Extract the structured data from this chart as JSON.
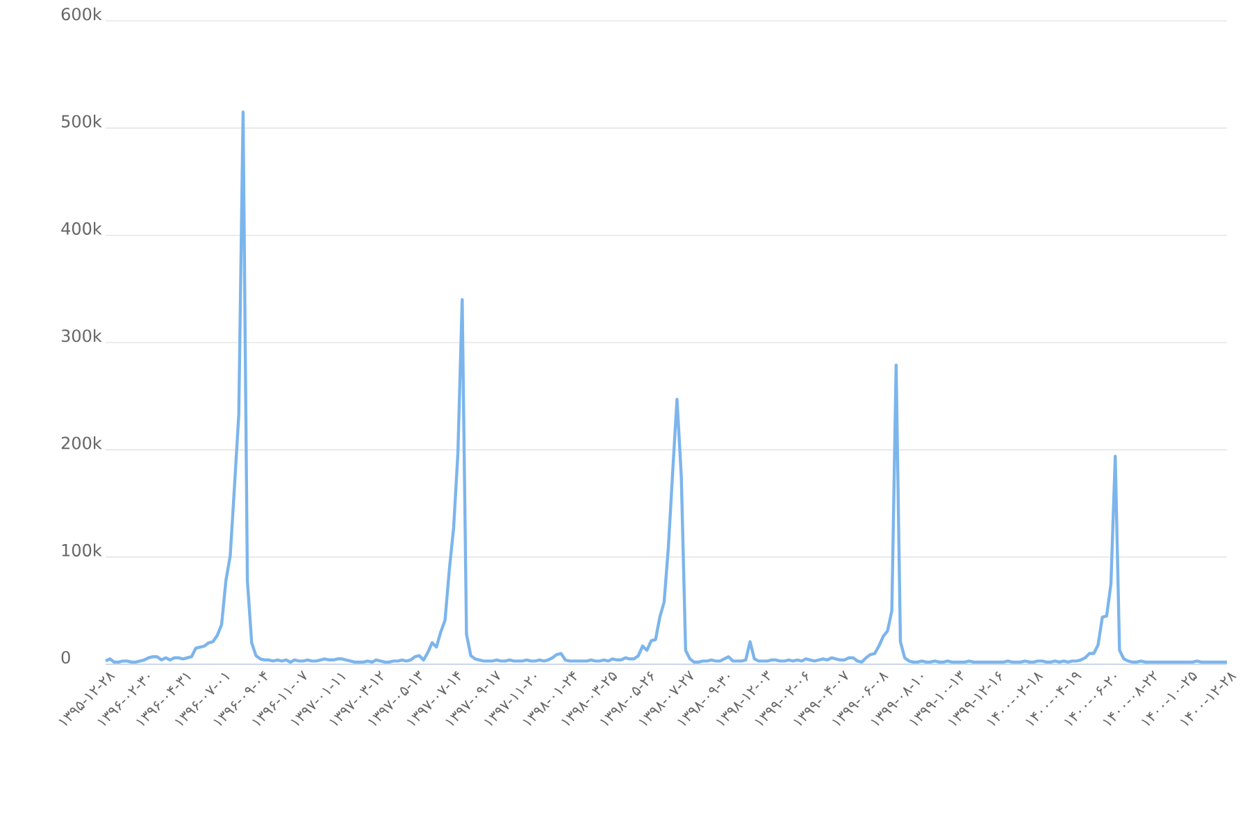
{
  "chart_data": {
    "type": "line",
    "color": "#7cb5ec",
    "grid": "y",
    "ylim": [
      0,
      600000
    ],
    "yticks": [
      {
        "value": 0,
        "label": "0"
      },
      {
        "value": 100000,
        "label": "100k"
      },
      {
        "value": 200000,
        "label": "200k"
      },
      {
        "value": 300000,
        "label": "300k"
      },
      {
        "value": 400000,
        "label": "400k"
      },
      {
        "value": 500000,
        "label": "500k"
      },
      {
        "value": 600000,
        "label": "600k"
      }
    ],
    "categories": [
      "۱۳۹۵-۱۲-۲۸",
      null,
      null,
      null,
      null,
      null,
      null,
      null,
      null,
      "۱۳۹۶-۰۲-۳۰",
      null,
      null,
      null,
      null,
      null,
      null,
      null,
      null,
      "۱۳۹۶-۰۴-۳۱",
      null,
      null,
      null,
      null,
      null,
      null,
      null,
      null,
      "۱۳۹۶-۰۷-۰۱",
      null,
      null,
      null,
      null,
      null,
      null,
      null,
      null,
      "۱۳۹۶-۰۹-۰۴",
      null,
      null,
      null,
      null,
      null,
      null,
      null,
      null,
      "۱۳۹۶-۱۱-۰۷",
      null,
      null,
      null,
      null,
      null,
      null,
      null,
      null,
      "۱۳۹۷-۰۱-۱۱",
      null,
      null,
      null,
      null,
      null,
      null,
      null,
      null,
      "۱۳۹۷-۰۳-۱۲",
      null,
      null,
      null,
      null,
      null,
      null,
      null,
      null,
      "۱۳۹۷-۰۵-۱۳",
      null,
      null,
      null,
      null,
      null,
      null,
      null,
      null,
      "۱۳۹۷-۰۷-۱۴",
      null,
      null,
      null,
      null,
      null,
      null,
      null,
      null,
      "۱۳۹۷-۰۹-۱۷",
      null,
      null,
      null,
      null,
      null,
      null,
      null,
      null,
      "۱۳۹۷-۱۱-۲۰",
      null,
      null,
      null,
      null,
      null,
      null,
      null,
      null,
      "۱۳۹۸-۰۱-۲۴",
      null,
      null,
      null,
      null,
      null,
      null,
      null,
      null,
      "۱۳۹۸-۰۳-۲۵",
      null,
      null,
      null,
      null,
      null,
      null,
      null,
      null,
      "۱۳۹۸-۰۵-۲۶",
      null,
      null,
      null,
      null,
      null,
      null,
      null,
      null,
      "۱۳۹۸-۰۷-۲۷",
      null,
      null,
      null,
      null,
      null,
      null,
      null,
      null,
      "۱۳۹۸-۰۹-۳۰",
      null,
      null,
      null,
      null,
      null,
      null,
      null,
      null,
      "۱۳۹۸-۱۲-۰۳",
      null,
      null,
      null,
      null,
      null,
      null,
      null,
      null,
      "۱۳۹۹-۰۲-۰۶",
      null,
      null,
      null,
      null,
      null,
      null,
      null,
      null,
      "۱۳۹۹-۰۴-۰۷",
      null,
      null,
      null,
      null,
      null,
      null,
      null,
      null,
      "۱۳۹۹-۰۶-۰۸",
      null,
      null,
      null,
      null,
      null,
      null,
      null,
      null,
      "۱۳۹۹-۰۸-۱۰",
      null,
      null,
      null,
      null,
      null,
      null,
      null,
      null,
      "۱۳۹۹-۱۰-۱۳",
      null,
      null,
      null,
      null,
      null,
      null,
      null,
      null,
      "۱۳۹۹-۱۲-۱۶",
      null,
      null,
      null,
      null,
      null,
      null,
      null,
      null,
      "۱۴۰۰-۰۲-۱۸",
      null,
      null,
      null,
      null,
      null,
      null,
      null,
      null,
      "۱۴۰۰-۰۴-۱۹",
      null,
      null,
      null,
      null,
      null,
      null,
      null,
      null,
      "۱۴۰۰-۰۶-۲۰",
      null,
      null,
      null,
      null,
      null,
      null,
      null,
      null,
      "۱۴۰۰-۰۸-۲۲",
      null,
      null,
      null,
      null,
      null,
      null,
      null,
      null,
      "۱۴۰۰-۱۰-۲۵",
      null,
      null,
      null,
      null,
      null,
      null,
      null,
      null,
      "۱۴۰۰-۱۲-۲۸"
    ],
    "values": [
      3000,
      5000,
      2000,
      2000,
      3000,
      3000,
      2000,
      2000,
      3000,
      4000,
      6000,
      7000,
      7000,
      4000,
      6000,
      4000,
      6000,
      6000,
      5000,
      6000,
      7000,
      15000,
      16000,
      17000,
      20000,
      21000,
      27000,
      37000,
      78000,
      101000,
      166000,
      233000,
      515000,
      78000,
      20000,
      8000,
      5000,
      4000,
      4000,
      3000,
      4000,
      3000,
      4000,
      2000,
      4000,
      3000,
      3000,
      4000,
      3000,
      3000,
      4000,
      5000,
      4000,
      4000,
      5000,
      5000,
      4000,
      3000,
      2000,
      2000,
      2000,
      3000,
      2000,
      4000,
      3000,
      2000,
      2000,
      3000,
      3000,
      4000,
      3000,
      4000,
      7000,
      8000,
      4000,
      11000,
      20000,
      16000,
      30000,
      41000,
      88000,
      127000,
      197000,
      340000,
      28000,
      8000,
      5000,
      4000,
      3000,
      3000,
      3000,
      4000,
      3000,
      3000,
      4000,
      3000,
      3000,
      3000,
      4000,
      3000,
      3000,
      4000,
      3000,
      4000,
      6000,
      9000,
      10000,
      4000,
      3000,
      3000,
      3000,
      3000,
      3000,
      4000,
      3000,
      3000,
      4000,
      3000,
      5000,
      4000,
      4000,
      6000,
      5000,
      5000,
      8000,
      17000,
      13000,
      22000,
      23000,
      44000,
      58000,
      110000,
      180000,
      247000,
      175000,
      13000,
      5000,
      2000,
      2000,
      3000,
      3000,
      4000,
      3000,
      3000,
      5000,
      7000,
      3000,
      3000,
      3000,
      4000,
      21000,
      5000,
      3000,
      3000,
      3000,
      4000,
      4000,
      3000,
      3000,
      4000,
      3000,
      4000,
      3000,
      5000,
      4000,
      3000,
      4000,
      5000,
      4000,
      6000,
      5000,
      4000,
      4000,
      6000,
      6000,
      3000,
      2000,
      6000,
      9000,
      10000,
      17000,
      26000,
      31000,
      50000,
      279000,
      21000,
      6000,
      3000,
      2000,
      2000,
      3000,
      2000,
      2000,
      3000,
      2000,
      2000,
      3000,
      2000,
      2000,
      2000,
      2000,
      3000,
      2000,
      2000,
      2000,
      2000,
      2000,
      2000,
      2000,
      2000,
      3000,
      2000,
      2000,
      2000,
      3000,
      2000,
      2000,
      3000,
      3000,
      2000,
      2000,
      3000,
      2000,
      3000,
      2000,
      3000,
      3000,
      4000,
      6000,
      10000,
      10000,
      18000,
      44000,
      45000,
      75000,
      194000,
      13000,
      5000,
      3000,
      2000,
      2000,
      3000,
      2000,
      2000,
      2000,
      2000,
      2000,
      2000,
      2000,
      2000,
      2000,
      2000,
      2000,
      2000,
      3000,
      2000,
      2000,
      2000,
      2000,
      2000,
      2000,
      2000
    ]
  }
}
